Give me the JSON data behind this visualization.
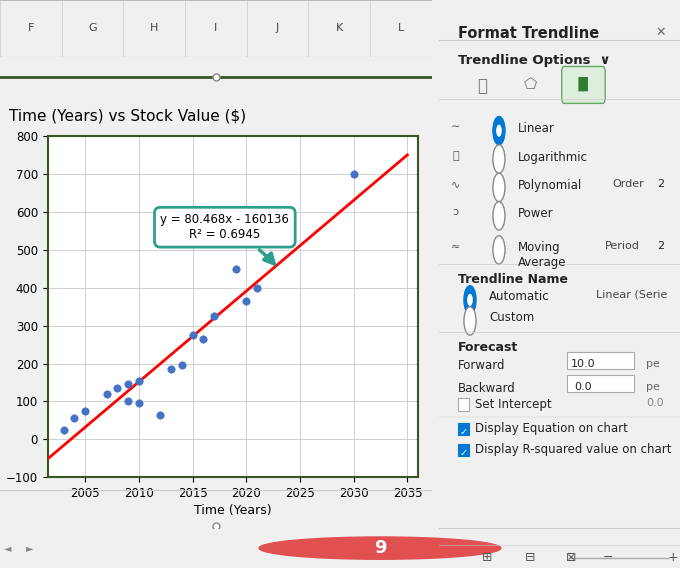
{
  "title": "Time (Years) vs Stock Value ($)",
  "xlabel": "Time (Years)",
  "scatter_x": [
    2003,
    2004,
    2005,
    2007,
    2008,
    2009,
    2009,
    2010,
    2010,
    2012,
    2013,
    2014,
    2015,
    2016,
    2017,
    2019,
    2020,
    2021,
    2030
  ],
  "scatter_y": [
    25,
    55,
    75,
    120,
    135,
    145,
    100,
    95,
    155,
    65,
    185,
    195,
    275,
    265,
    325,
    450,
    365,
    400,
    700
  ],
  "slope": 80.468,
  "intercept": -160136,
  "r_squared": 0.6945,
  "trendline_x_start": 2001.5,
  "trendline_x_end": 2035,
  "scatter_color": "#4472C4",
  "trendline_color": "#FF0000",
  "equation_box_color": "#2E9E8E",
  "equation_text": "y = 80.468x - 160136",
  "r2_text": "R² = 0.6945",
  "arrow_color": "#2E9E8E",
  "xlim": [
    2001.5,
    2036
  ],
  "ylim": [
    -100,
    800
  ],
  "xticks": [
    2005,
    2010,
    2015,
    2020,
    2025,
    2030,
    2035
  ],
  "chart_background": "#FFFFFF",
  "outer_background": "#F0F0F0",
  "excel_bg": "#F0F0F0",
  "grid_color": "#D0D0D0",
  "border_color": "#375623",
  "title_fontsize": 11,
  "axis_fontsize": 9,
  "tick_fontsize": 8.5,
  "number_badge": "9",
  "badge_color": "#E05050",
  "panel_bg": "#F5F5F5",
  "panel_header": "Format Trendline",
  "panel_subheader": "Trendline Options",
  "trendline_options": [
    "Linear",
    "Logarithmic",
    "Polynomial",
    "Power",
    "Moving\nAverage"
  ],
  "forecast_forward": "10.0",
  "forecast_backward": "0.0",
  "set_intercept": "0.0",
  "trendline_name_auto": "Linear (Serie",
  "period_val": "2",
  "order_val": "2"
}
